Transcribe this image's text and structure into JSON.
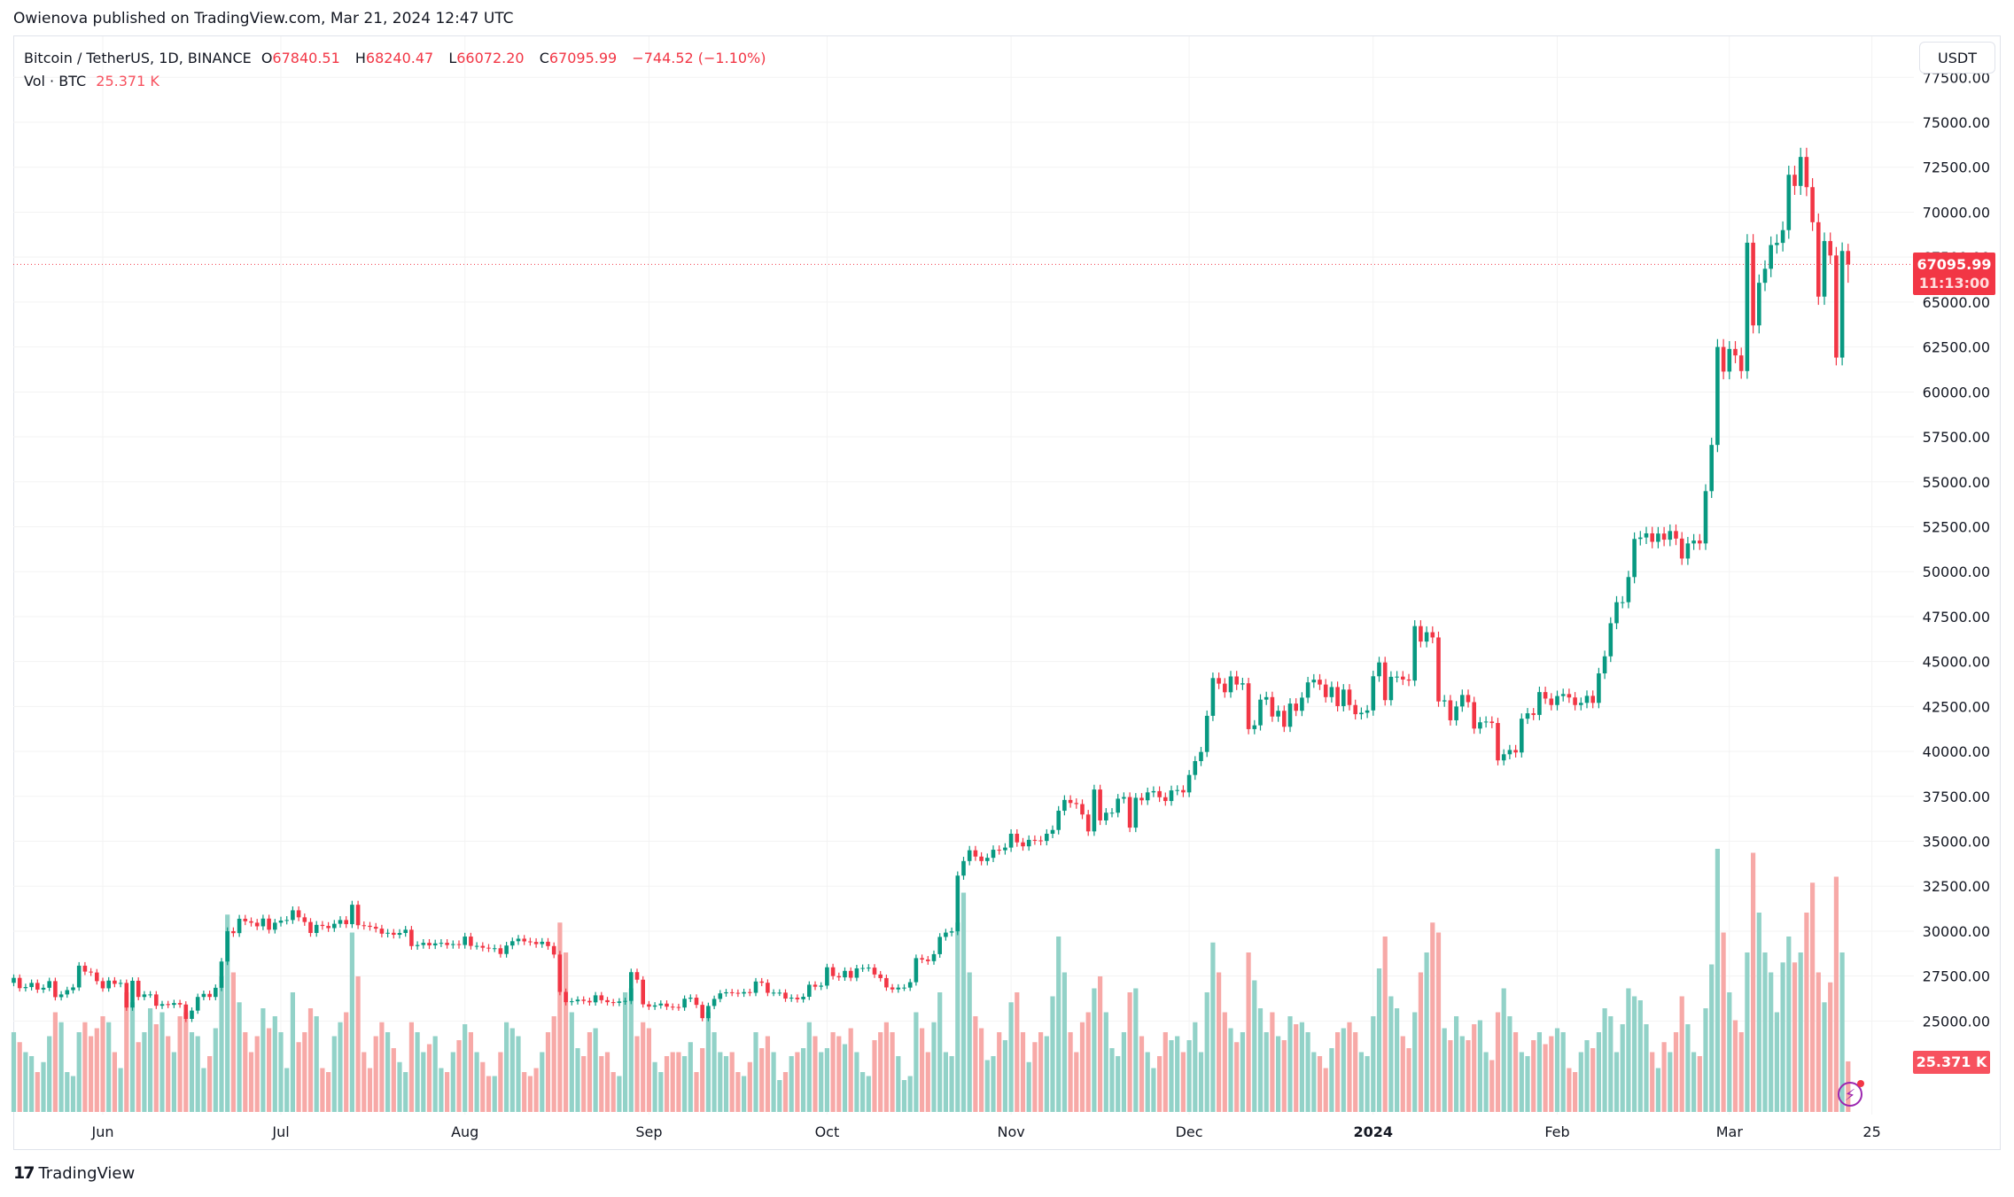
{
  "publisher_line": "Owienova published on TradingView.com, Mar 21, 2024 12:47 UTC",
  "legend": {
    "symbol": "Bitcoin / TetherUS, 1D, BINANCE",
    "open_label": "O",
    "open": "67840.51",
    "high_label": "H",
    "high": "68240.47",
    "low_label": "L",
    "low": "66072.20",
    "close_label": "C",
    "close": "67095.99",
    "change": "−744.52 (−1.10%)",
    "vol_label": "Vol · BTC",
    "vol_value": "25.371 K"
  },
  "currency_button": "USDT",
  "last_price_tag": {
    "price": "67095.99",
    "countdown": "11:13:00"
  },
  "volume_tag": "25.371 K",
  "footer_brand": "TradingView",
  "colors": {
    "up": "#089981",
    "down": "#f23645",
    "vol_up": "#92d2c8",
    "vol_down": "#f7a9a7",
    "grid": "#f3f3f3"
  },
  "chart_data": {
    "type": "candlestick",
    "interval": "1D",
    "y_axis_ticks": [
      "25000.00",
      "27500.00",
      "30000.00",
      "32500.00",
      "35000.00",
      "37500.00",
      "40000.00",
      "42500.00",
      "45000.00",
      "47500.00",
      "50000.00",
      "52500.00",
      "55000.00",
      "57500.00",
      "60000.00",
      "62500.00",
      "65000.00",
      "67500.00",
      "70000.00",
      "72500.00",
      "75000.00",
      "77500.00"
    ],
    "ylim": [
      22000,
      77500
    ],
    "x_axis_ticks": [
      "Jun",
      "Jul",
      "Aug",
      "Sep",
      "Oct",
      "Nov",
      "Dec",
      "2024",
      "Feb",
      "Mar",
      "25"
    ],
    "grid": true,
    "last_candle": {
      "open": 67840.51,
      "high": 68240.47,
      "low": 66072.2,
      "close": 67095.99,
      "volume_k": 25.371
    },
    "months": [
      {
        "month": "2023-05",
        "first_day": 17,
        "close": [
          27400,
          26830,
          26890,
          27120,
          26750,
          26850,
          27220,
          26330,
          26480,
          26720,
          26870,
          28080,
          27750,
          27700,
          27220
        ],
        "volume_k": [
          40,
          35,
          30,
          28,
          20,
          25,
          38,
          50,
          45,
          20,
          18,
          40,
          45,
          38,
          42
        ]
      },
      {
        "month": "2023-06",
        "first_day": 1,
        "close": [
          26820,
          27250,
          27070,
          27120,
          25750,
          27240,
          26340,
          26480,
          26480,
          25850,
          25940,
          25900,
          26000,
          25920,
          25120,
          25580,
          26340,
          26510,
          26340,
          26850,
          28310,
          30000,
          29890,
          30690,
          30550,
          30470,
          30270,
          30700,
          30080,
          30470
        ],
        "volume_k": [
          48,
          45,
          30,
          22,
          60,
          55,
          35,
          40,
          52,
          44,
          50,
          38,
          30,
          48,
          50,
          40,
          38,
          22,
          28,
          42,
          68,
          99,
          70,
          55,
          40,
          30,
          38,
          52,
          42,
          48
        ]
      },
      {
        "month": "2023-07",
        "first_day": 1,
        "close": [
          30590,
          30620,
          31160,
          30770,
          30510,
          29900,
          30350,
          30290,
          30170,
          30410,
          30620,
          30390,
          31470,
          30330,
          30300,
          30240,
          30140,
          29860,
          29910,
          29800,
          29900,
          30080,
          29170,
          29230,
          29350,
          29210,
          29320,
          29350,
          29230,
          29280,
          29230
        ],
        "volume_k": [
          40,
          22,
          60,
          35,
          40,
          52,
          48,
          22,
          20,
          38,
          45,
          50,
          90,
          68,
          30,
          22,
          38,
          45,
          40,
          32,
          25,
          20,
          45,
          40,
          30,
          34,
          38,
          22,
          20,
          30,
          36
        ]
      },
      {
        "month": "2023-08",
        "first_day": 1,
        "close": [
          29700,
          29180,
          29180,
          29080,
          29040,
          29050,
          28730,
          29200,
          29440,
          29580,
          29430,
          29400,
          29280,
          29410,
          29170,
          28700,
          26620,
          26050,
          26100,
          26190,
          26120,
          26040,
          26430,
          26160,
          26050,
          26010,
          26090,
          26120,
          27720,
          27300,
          25930
        ],
        "volume_k": [
          44,
          40,
          30,
          25,
          18,
          18,
          30,
          45,
          42,
          38,
          20,
          18,
          22,
          30,
          40,
          48,
          95,
          80,
          50,
          32,
          28,
          40,
          42,
          28,
          30,
          20,
          18,
          60,
          62,
          38,
          45
        ]
      },
      {
        "month": "2023-09",
        "first_day": 1,
        "close": [
          25800,
          25870,
          25970,
          25800,
          25780,
          25750,
          26240,
          26300,
          25900,
          25160,
          25840,
          26230,
          26540,
          26600,
          26570,
          26530,
          26610,
          26570,
          27200,
          27130,
          26570,
          26580,
          26580,
          26250,
          26300,
          26210,
          26350,
          27020,
          26910,
          26970
        ],
        "volume_k": [
          42,
          25,
          20,
          28,
          30,
          30,
          28,
          35,
          20,
          32,
          50,
          40,
          30,
          28,
          30,
          20,
          18,
          25,
          40,
          32,
          38,
          30,
          16,
          20,
          28,
          30,
          32,
          45,
          38,
          30
        ]
      },
      {
        "month": "2023-10",
        "first_day": 1,
        "close": [
          27990,
          27500,
          27430,
          27790,
          27410,
          27930,
          27950,
          27970,
          27590,
          27390,
          26870,
          26760,
          26860,
          26860,
          27160,
          28500,
          28420,
          28330,
          28720,
          29680,
          29920,
          29990,
          33090,
          33900,
          34500,
          34150,
          33900,
          34080,
          34530,
          34500,
          34650
        ],
        "volume_k": [
          32,
          40,
          38,
          34,
          42,
          30,
          20,
          18,
          36,
          40,
          45,
          40,
          28,
          16,
          18,
          50,
          42,
          30,
          45,
          60,
          30,
          28,
          95,
          110,
          70,
          48,
          42,
          26,
          28,
          40,
          36
        ]
      },
      {
        "month": "2023-11",
        "first_day": 1,
        "close": [
          35420,
          34940,
          34720,
          35080,
          35050,
          35020,
          35420,
          35630,
          36700,
          37300,
          37130,
          37070,
          36490,
          35550,
          37880,
          36160,
          36590,
          36590,
          37370,
          37460,
          35760,
          37420,
          37280,
          37720,
          37790,
          37450,
          37240,
          37830,
          37850,
          37720
        ],
        "volume_k": [
          55,
          60,
          40,
          25,
          35,
          40,
          38,
          58,
          88,
          70,
          40,
          30,
          45,
          50,
          62,
          68,
          50,
          32,
          28,
          40,
          60,
          62,
          38,
          30,
          22,
          28,
          40,
          36,
          38,
          30
        ]
      },
      {
        "month": "2023-12",
        "first_day": 1,
        "close": [
          38690,
          39460,
          39970,
          41980,
          44080,
          43770,
          43290,
          44170,
          43720,
          43790,
          41240,
          41450,
          42880,
          43020,
          41940,
          42260,
          41370,
          42660,
          42260,
          42990,
          43840,
          43990,
          43720,
          43020,
          43580,
          42520,
          43440,
          42580,
          42070,
          42150,
          42280
        ],
        "volume_k": [
          36,
          45,
          30,
          60,
          85,
          70,
          50,
          42,
          35,
          40,
          80,
          66,
          52,
          40,
          50,
          38,
          36,
          48,
          44,
          45,
          40,
          30,
          28,
          22,
          32,
          40,
          42,
          45,
          40,
          30,
          28
        ]
      },
      {
        "month": "2024-01",
        "first_day": 1,
        "close": [
          44180,
          44950,
          42850,
          44150,
          44160,
          44000,
          43940,
          46970,
          46110,
          46630,
          46340,
          42780,
          42840,
          41730,
          42500,
          43140,
          42740,
          41270,
          41620,
          41660,
          41580,
          39500,
          39840,
          40080,
          39940,
          41820,
          42120,
          42030,
          43300,
          42940,
          42580
        ],
        "volume_k": [
          48,
          72,
          88,
          58,
          52,
          38,
          32,
          50,
          70,
          80,
          95,
          90,
          42,
          36,
          48,
          38,
          36,
          44,
          46,
          30,
          26,
          50,
          62,
          48,
          40,
          30,
          28,
          36,
          40,
          34,
          38
        ]
      },
      {
        "month": "2024-02",
        "first_day": 1,
        "close": [
          43080,
          43190,
          43000,
          42580,
          42700,
          43090,
          42700,
          44340,
          45290,
          47130,
          48300,
          48300,
          49700,
          51820,
          51900,
          52130,
          51660,
          52120,
          51780,
          52260,
          51840,
          50730,
          51570,
          51730,
          51570,
          54480,
          57050,
          62500,
          61130
        ],
        "volume_k": [
          42,
          40,
          22,
          20,
          30,
          36,
          32,
          40,
          52,
          48,
          30,
          44,
          62,
          58,
          56,
          44,
          30,
          22,
          35,
          30,
          40,
          58,
          44,
          30,
          28,
          52,
          74,
          132,
          90
        ]
      },
      {
        "month": "2024-03",
        "first_day": 1,
        "close": [
          62390,
          62030,
          61160,
          68300,
          63700,
          66070,
          66850,
          68170,
          68290,
          69000,
          72080,
          71460,
          73070,
          71390,
          69440,
          65300,
          68390,
          67590,
          61910,
          67840,
          67095.99
        ],
        "volume_k": [
          60,
          46,
          40,
          80,
          130,
          100,
          80,
          70,
          50,
          75,
          88,
          75,
          80,
          100,
          115,
          70,
          55,
          65,
          118,
          80,
          25.371
        ]
      }
    ]
  }
}
